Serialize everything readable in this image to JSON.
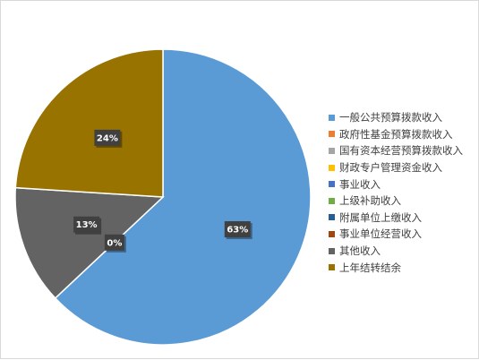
{
  "chart_data": {
    "type": "pie",
    "categories": [
      "一般公共预算拨款收入",
      "政府性基金预算拨款收入",
      "国有资本经营预算拨款收入",
      "财政专户管理资金收入",
      "事业收入",
      "上级补助收入",
      "附属单位上缴收入",
      "事业单位经营收入",
      "其他收入",
      "上年结转结余"
    ],
    "values": [
      63,
      0,
      0,
      0,
      0,
      0,
      0,
      0,
      13,
      24
    ],
    "data_labels": {
      "一般公共预算拨款收入": "63%",
      "其他收入": "13%",
      "上年结转结余": "24%",
      "zero_share": "0%"
    },
    "colors": [
      "#5B9BD5",
      "#ED7D31",
      "#A5A5A5",
      "#FFC000",
      "#4472C4",
      "#70AD47",
      "#255E91",
      "#9E480E",
      "#636363",
      "#997300"
    ],
    "legend_position": "right",
    "start_angle_deg": 0,
    "direction": "clockwise"
  }
}
